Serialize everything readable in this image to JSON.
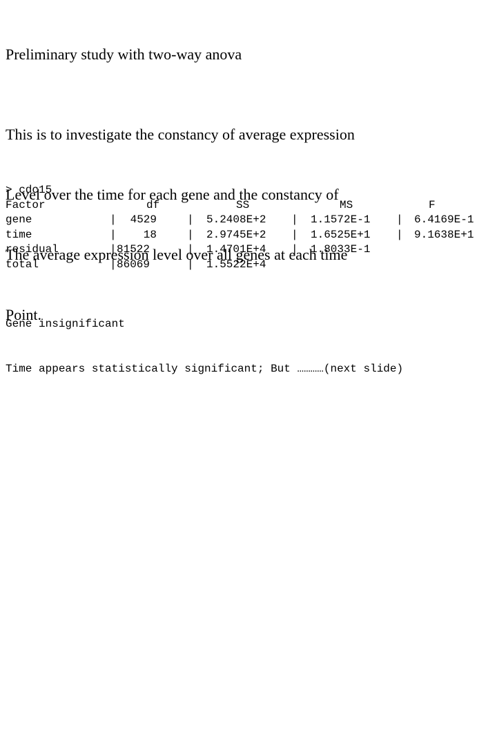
{
  "title": "Preliminary study with two-way anova",
  "intro": {
    "lines": [
      "This is to investigate the constancy of average expression",
      "Level over the time for each gene and the constancy of",
      "The average expression level over all genes at each time",
      "Point."
    ]
  },
  "console": {
    "prompt": "> cdc15",
    "header": {
      "factor": "Factor",
      "df": "df",
      "ss": "SS",
      "ms": "MS",
      "f": "F"
    },
    "rows": [
      {
        "factor": "gene",
        "df_sep": "|",
        "df": " 4529",
        "sep1": "|",
        "ss": "5.2408E+2",
        "sep2": "|",
        "ms": "1.1572E-1",
        "sep3": "|",
        "f": "6.4169E-1"
      },
      {
        "factor": "time",
        "df_sep": "|",
        "df": "   18",
        "sep1": "|",
        "ss": "2.9745E+2",
        "sep2": "|",
        "ms": "1.6525E+1",
        "sep3": "|",
        "f": "9.1638E+1"
      },
      {
        "factor": "residual",
        "df_sep": "|",
        "df": "81522",
        "sep1": "|",
        "ss": "1.4701E+4",
        "sep2": "|",
        "ms": "1.8033E-1",
        "sep3": "",
        "f": ""
      },
      {
        "factor": "total",
        "df_sep": "|",
        "df": "86069",
        "sep1": "|",
        "ss": "1.5522E+4",
        "sep2": "",
        "ms": "",
        "sep3": "",
        "f": ""
      }
    ]
  },
  "notes": {
    "line1": "Gene insignificant",
    "line2": "Time appears statistically significant; But …………(next slide)"
  }
}
